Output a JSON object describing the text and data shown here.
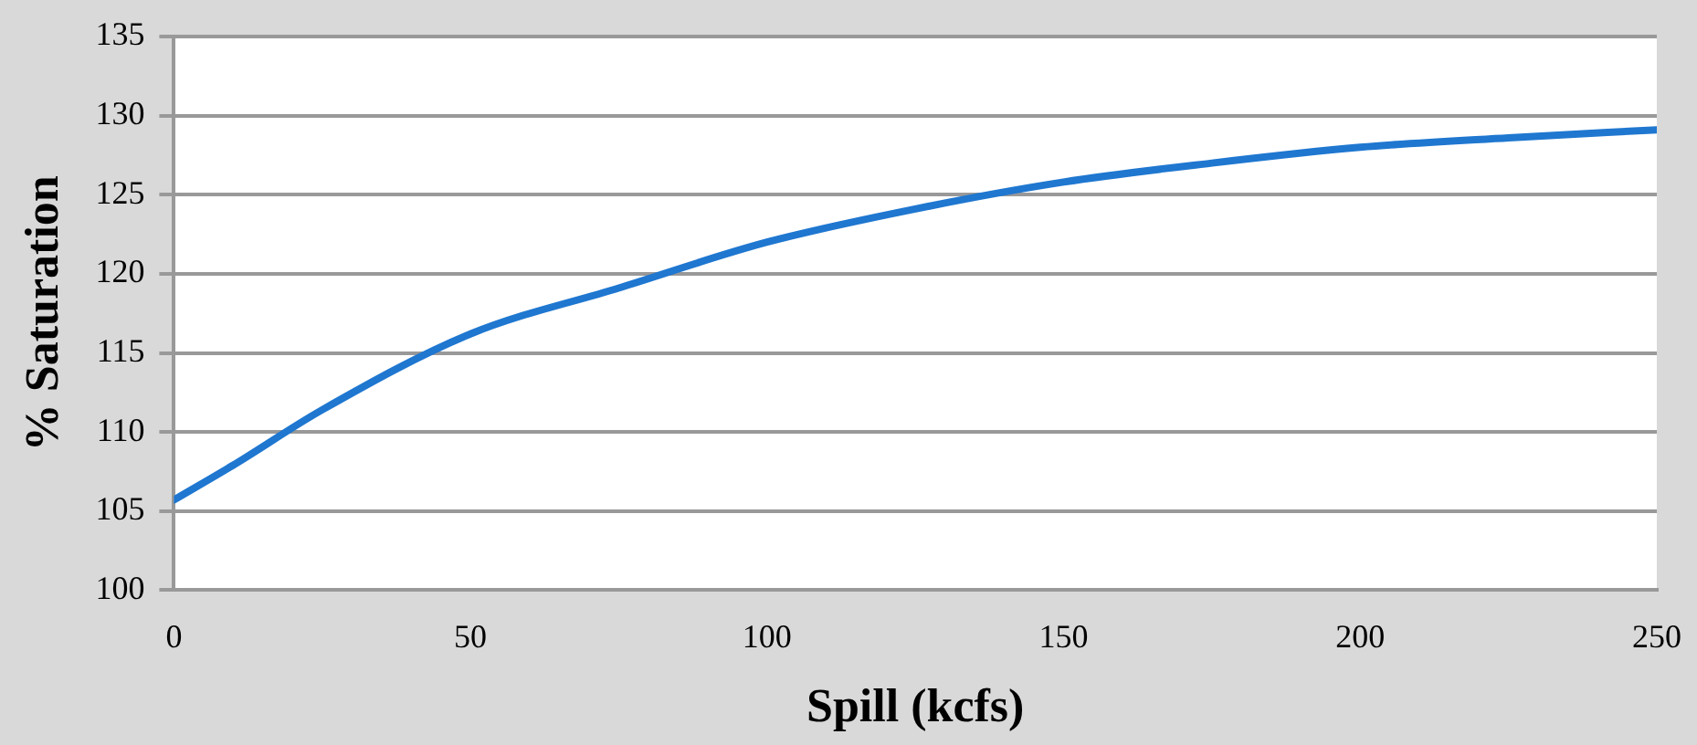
{
  "chart_data": {
    "type": "line",
    "xlabel": "Spill (kcfs)",
    "ylabel": "% Saturation",
    "x": [
      0,
      10,
      25,
      50,
      75,
      100,
      125,
      150,
      175,
      200,
      225,
      250
    ],
    "series": [
      {
        "color": "#1f77d0",
        "values": [
          105.7,
          107.9,
          111.4,
          116.2,
          119.1,
          122.0,
          124.1,
          125.8,
          127.0,
          128.0,
          128.6,
          129.1
        ]
      }
    ],
    "xlim": [
      0,
      250
    ],
    "xticks": [
      0,
      50,
      100,
      150,
      200,
      250
    ],
    "ylim": [
      100,
      135
    ],
    "yticks": [
      100,
      105,
      110,
      115,
      120,
      125,
      130,
      135
    ],
    "grid": "y",
    "legend": false,
    "marker": "none",
    "line_style": "solid"
  }
}
